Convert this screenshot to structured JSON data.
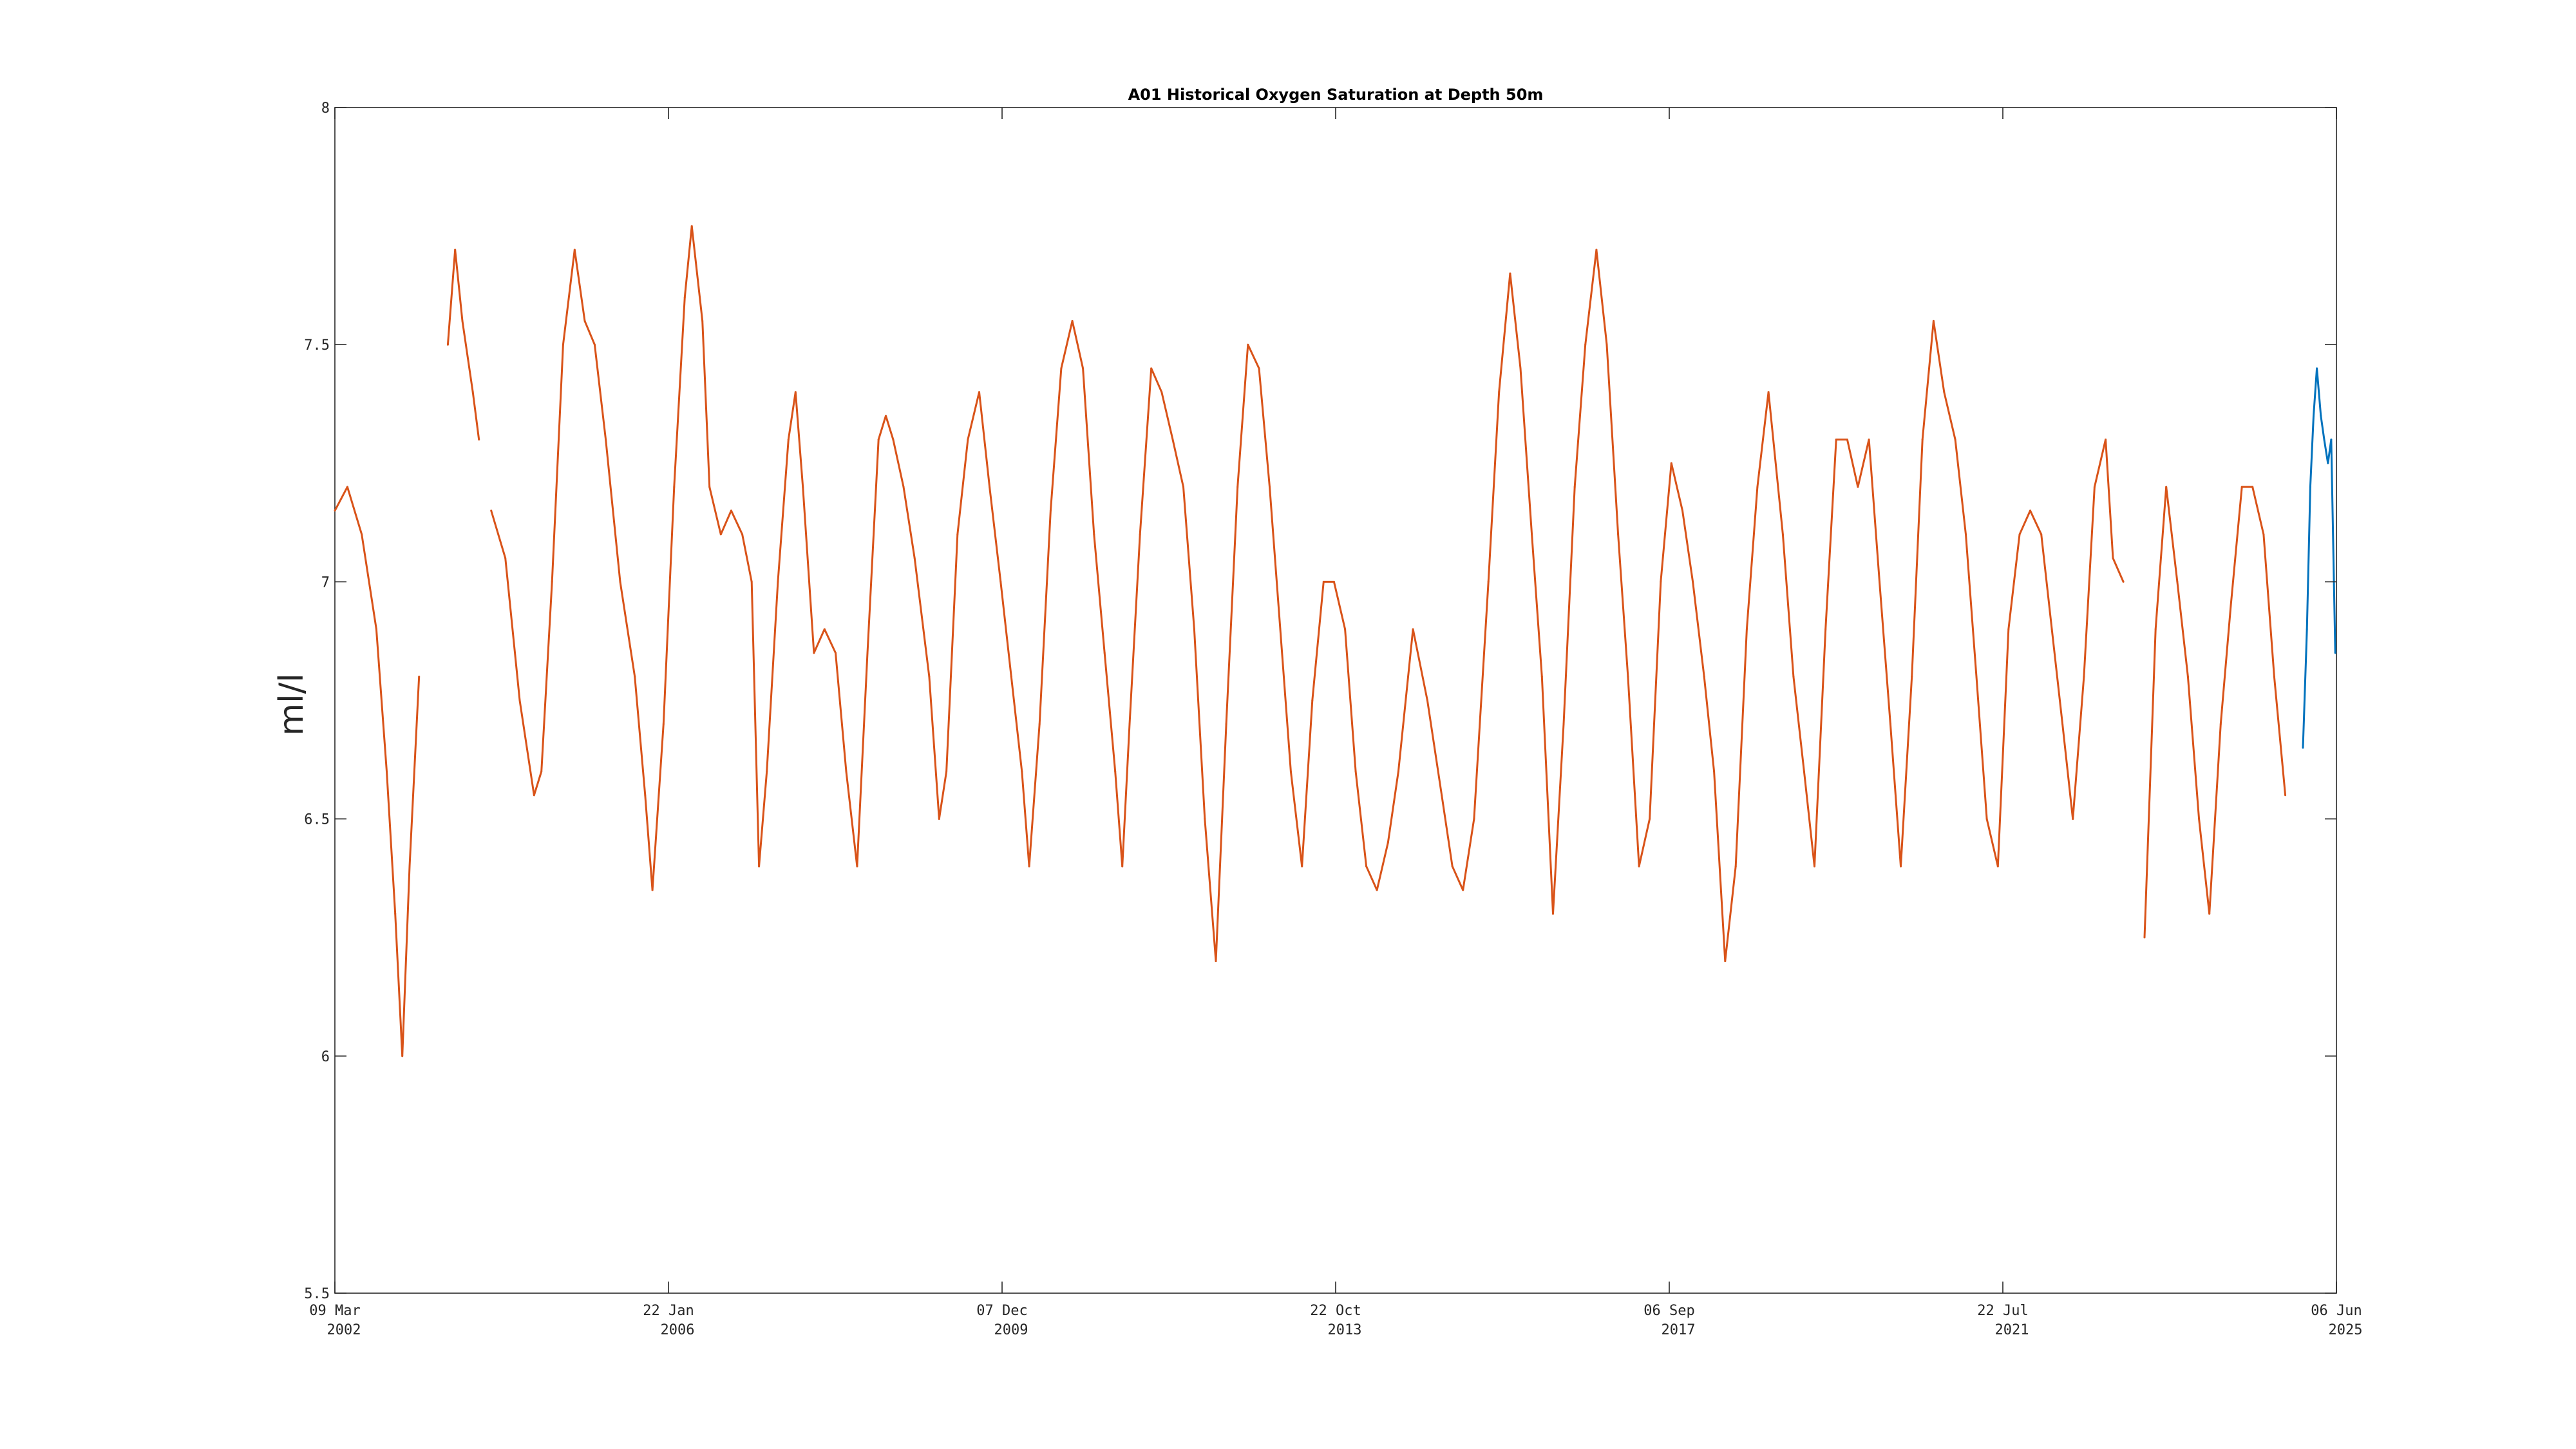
{
  "chart_data": {
    "type": "line",
    "title": "A01 Historical Oxygen Saturation at Depth 50m",
    "xlabel": "",
    "ylabel": "ml/l",
    "xlim": [
      "2002-03-09",
      "2025-06-06"
    ],
    "ylim": [
      5.5,
      8
    ],
    "grid": false,
    "legend": "none",
    "x_ticks": [
      {
        "date": "2002-03-09",
        "line1": "09 Mar",
        "line2": "2002"
      },
      {
        "date": "2006-01-22",
        "line1": "22 Jan",
        "line2": "2006"
      },
      {
        "date": "2009-12-07",
        "line1": "07 Dec",
        "line2": "2009"
      },
      {
        "date": "2013-10-22",
        "line1": "22 Oct",
        "line2": "2013"
      },
      {
        "date": "2017-09-06",
        "line1": "06 Sep",
        "line2": "2017"
      },
      {
        "date": "2021-07-22",
        "line1": "22 Jul",
        "line2": "2021"
      },
      {
        "date": "2025-06-06",
        "line1": "06 Jun",
        "line2": "2025"
      }
    ],
    "y_ticks": [
      {
        "value": 5.5,
        "label": "5.5"
      },
      {
        "value": 6,
        "label": "6"
      },
      {
        "value": 6.5,
        "label": "6.5"
      },
      {
        "value": 7,
        "label": "7"
      },
      {
        "value": 7.5,
        "label": "7.5"
      },
      {
        "value": 8,
        "label": "8"
      }
    ],
    "series": [
      {
        "color": "#d95319",
        "points": [
          [
            "2002-03-09",
            7.15
          ],
          [
            "2002-05-01",
            7.2
          ],
          [
            "2002-07-01",
            7.1
          ],
          [
            "2002-09-01",
            6.9
          ],
          [
            "2002-10-15",
            6.6
          ],
          [
            "2002-11-20",
            6.3
          ],
          [
            "2002-12-20",
            6.0
          ],
          [
            "2003-01-20",
            6.4
          ],
          [
            "2003-03-01",
            6.8
          ],
          [
            "2003-07-01",
            7.5
          ],
          [
            "2003-08-01",
            7.7
          ],
          [
            "2003-09-01",
            7.55
          ],
          [
            "2003-10-15",
            7.4
          ],
          [
            "2003-11-10",
            7.3
          ],
          [
            "2004-01-01",
            7.15
          ],
          [
            "2004-03-01",
            7.05
          ],
          [
            "2004-05-01",
            6.75
          ],
          [
            "2004-07-01",
            6.55
          ],
          [
            "2004-08-01",
            6.6
          ],
          [
            "2004-09-15",
            7.0
          ],
          [
            "2004-11-01",
            7.5
          ],
          [
            "2004-12-20",
            7.7
          ],
          [
            "2005-02-01",
            7.55
          ],
          [
            "2005-03-15",
            7.5
          ],
          [
            "2005-05-01",
            7.3
          ],
          [
            "2005-07-01",
            7.0
          ],
          [
            "2005-09-01",
            6.8
          ],
          [
            "2005-10-15",
            6.55
          ],
          [
            "2005-11-15",
            6.35
          ],
          [
            "2006-01-01",
            6.7
          ],
          [
            "2006-02-15",
            7.2
          ],
          [
            "2006-04-01",
            7.6
          ],
          [
            "2006-05-01",
            7.75
          ],
          [
            "2006-06-15",
            7.55
          ],
          [
            "2006-07-15",
            7.2
          ],
          [
            "2006-09-01",
            7.1
          ],
          [
            "2006-10-15",
            7.15
          ],
          [
            "2006-12-01",
            7.1
          ],
          [
            "2007-01-10",
            7.0
          ],
          [
            "2007-02-10",
            6.4
          ],
          [
            "2007-03-15",
            6.6
          ],
          [
            "2007-05-01",
            7.0
          ],
          [
            "2007-06-15",
            7.3
          ],
          [
            "2007-07-15",
            7.4
          ],
          [
            "2007-08-15",
            7.2
          ],
          [
            "2007-10-01",
            6.85
          ],
          [
            "2007-11-15",
            6.9
          ],
          [
            "2008-01-01",
            6.85
          ],
          [
            "2008-02-15",
            6.6
          ],
          [
            "2008-04-01",
            6.4
          ],
          [
            "2008-05-15",
            6.85
          ],
          [
            "2008-07-01",
            7.3
          ],
          [
            "2008-08-01",
            7.35
          ],
          [
            "2008-09-01",
            7.3
          ],
          [
            "2008-10-15",
            7.2
          ],
          [
            "2008-12-01",
            7.05
          ],
          [
            "2009-02-01",
            6.8
          ],
          [
            "2009-03-15",
            6.5
          ],
          [
            "2009-04-15",
            6.6
          ],
          [
            "2009-06-01",
            7.1
          ],
          [
            "2009-07-15",
            7.3
          ],
          [
            "2009-09-01",
            7.4
          ],
          [
            "2009-10-15",
            7.2
          ],
          [
            "2009-12-01",
            7.0
          ],
          [
            "2010-01-15",
            6.8
          ],
          [
            "2010-03-01",
            6.6
          ],
          [
            "2010-04-01",
            6.4
          ],
          [
            "2010-05-15",
            6.7
          ],
          [
            "2010-07-01",
            7.15
          ],
          [
            "2010-08-15",
            7.45
          ],
          [
            "2010-10-01",
            7.55
          ],
          [
            "2010-11-15",
            7.45
          ],
          [
            "2011-01-01",
            7.1
          ],
          [
            "2011-02-15",
            6.85
          ],
          [
            "2011-04-01",
            6.6
          ],
          [
            "2011-05-01",
            6.4
          ],
          [
            "2011-06-01",
            6.7
          ],
          [
            "2011-07-15",
            7.1
          ],
          [
            "2011-09-01",
            7.45
          ],
          [
            "2011-10-15",
            7.4
          ],
          [
            "2011-12-01",
            7.3
          ],
          [
            "2012-01-15",
            7.2
          ],
          [
            "2012-03-01",
            6.9
          ],
          [
            "2012-04-15",
            6.5
          ],
          [
            "2012-06-01",
            6.2
          ],
          [
            "2012-07-15",
            6.7
          ],
          [
            "2012-09-01",
            7.2
          ],
          [
            "2012-10-15",
            7.5
          ],
          [
            "2012-12-01",
            7.45
          ],
          [
            "2013-01-15",
            7.2
          ],
          [
            "2013-03-01",
            6.9
          ],
          [
            "2013-04-15",
            6.6
          ],
          [
            "2013-06-01",
            6.4
          ],
          [
            "2013-07-15",
            6.75
          ],
          [
            "2013-09-01",
            7.0
          ],
          [
            "2013-10-15",
            7.0
          ],
          [
            "2013-12-01",
            6.9
          ],
          [
            "2014-01-15",
            6.6
          ],
          [
            "2014-03-01",
            6.4
          ],
          [
            "2014-04-15",
            6.35
          ],
          [
            "2014-06-01",
            6.45
          ],
          [
            "2014-07-15",
            6.6
          ],
          [
            "2014-09-15",
            6.9
          ],
          [
            "2014-11-15",
            6.75
          ],
          [
            "2015-01-15",
            6.55
          ],
          [
            "2015-03-01",
            6.4
          ],
          [
            "2015-04-15",
            6.35
          ],
          [
            "2015-06-01",
            6.5
          ],
          [
            "2015-08-01",
            7.0
          ],
          [
            "2015-09-15",
            7.4
          ],
          [
            "2015-11-01",
            7.65
          ],
          [
            "2015-12-15",
            7.45
          ],
          [
            "2016-02-01",
            7.1
          ],
          [
            "2016-03-15",
            6.8
          ],
          [
            "2016-05-01",
            6.3
          ],
          [
            "2016-06-15",
            6.7
          ],
          [
            "2016-08-01",
            7.2
          ],
          [
            "2016-09-15",
            7.5
          ],
          [
            "2016-11-01",
            7.7
          ],
          [
            "2016-12-15",
            7.5
          ],
          [
            "2017-02-01",
            7.1
          ],
          [
            "2017-03-15",
            6.8
          ],
          [
            "2017-05-01",
            6.4
          ],
          [
            "2017-06-15",
            6.5
          ],
          [
            "2017-08-01",
            7.0
          ],
          [
            "2017-09-15",
            7.25
          ],
          [
            "2017-11-01",
            7.15
          ],
          [
            "2017-12-15",
            7.0
          ],
          [
            "2018-02-01",
            6.8
          ],
          [
            "2018-03-15",
            6.6
          ],
          [
            "2018-05-01",
            6.2
          ],
          [
            "2018-06-15",
            6.4
          ],
          [
            "2018-08-01",
            6.9
          ],
          [
            "2018-09-15",
            7.2
          ],
          [
            "2018-11-01",
            7.4
          ],
          [
            "2019-01-01",
            7.1
          ],
          [
            "2019-02-15",
            6.8
          ],
          [
            "2019-04-01",
            6.6
          ],
          [
            "2019-05-15",
            6.4
          ],
          [
            "2019-07-01",
            6.9
          ],
          [
            "2019-08-15",
            7.3
          ],
          [
            "2019-10-01",
            7.3
          ],
          [
            "2019-11-15",
            7.2
          ],
          [
            "2020-01-01",
            7.3
          ],
          [
            "2020-02-15",
            7.0
          ],
          [
            "2020-04-01",
            6.7
          ],
          [
            "2020-05-15",
            6.4
          ],
          [
            "2020-07-01",
            6.8
          ],
          [
            "2020-08-15",
            7.3
          ],
          [
            "2020-10-01",
            7.55
          ],
          [
            "2020-11-15",
            7.4
          ],
          [
            "2021-01-01",
            7.3
          ],
          [
            "2021-02-15",
            7.1
          ],
          [
            "2021-04-01",
            6.8
          ],
          [
            "2021-05-15",
            6.5
          ],
          [
            "2021-07-01",
            6.4
          ],
          [
            "2021-08-15",
            6.9
          ],
          [
            "2021-10-01",
            7.1
          ],
          [
            "2021-11-15",
            7.15
          ],
          [
            "2022-01-01",
            7.1
          ],
          [
            "2022-02-15",
            6.9
          ],
          [
            "2022-04-01",
            6.7
          ],
          [
            "2022-05-15",
            6.5
          ],
          [
            "2022-07-01",
            6.8
          ],
          [
            "2022-08-15",
            7.2
          ],
          [
            "2022-10-01",
            7.3
          ],
          [
            "2022-11-01",
            7.05
          ],
          [
            "2022-12-15",
            7.0
          ],
          [
            "2023-03-15",
            6.25
          ],
          [
            "2023-05-01",
            6.9
          ],
          [
            "2023-06-15",
            7.2
          ],
          [
            "2023-08-01",
            7.0
          ],
          [
            "2023-09-15",
            6.8
          ],
          [
            "2023-11-01",
            6.5
          ],
          [
            "2023-12-15",
            6.3
          ],
          [
            "2024-02-01",
            6.7
          ],
          [
            "2024-03-15",
            6.95
          ],
          [
            "2024-05-01",
            7.2
          ],
          [
            "2024-06-15",
            7.2
          ],
          [
            "2024-08-01",
            7.1
          ],
          [
            "2024-09-15",
            6.8
          ],
          [
            "2024-11-01",
            6.55
          ]
        ],
        "gaps_before": [
          "2003-07-01",
          "2004-01-01",
          "2023-03-15"
        ]
      },
      {
        "color": "#0072bd",
        "points": [
          [
            "2025-01-15",
            6.65
          ],
          [
            "2025-02-01",
            6.9
          ],
          [
            "2025-02-15",
            7.2
          ],
          [
            "2025-03-01",
            7.35
          ],
          [
            "2025-03-15",
            7.45
          ],
          [
            "2025-04-01",
            7.35
          ],
          [
            "2025-04-15",
            7.3
          ],
          [
            "2025-05-01",
            7.25
          ],
          [
            "2025-05-15",
            7.3
          ],
          [
            "2025-06-01",
            6.85
          ]
        ]
      }
    ]
  }
}
